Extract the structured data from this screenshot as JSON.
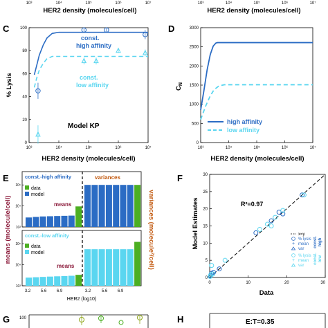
{
  "panel_letters": {
    "C": "C",
    "D": "D",
    "E": "E",
    "F": "F",
    "G": "G",
    "H": "H"
  },
  "top_strip": {
    "left_ticks": [
      "10³",
      "10⁴",
      "10⁵",
      "10⁶",
      "10⁷"
    ],
    "right_ticks": [
      "10³",
      "10⁴",
      "10⁵",
      "10⁶",
      "10⁷"
    ],
    "xlabel": "HER2 density (molecules/cell)"
  },
  "colors": {
    "dark_blue": "#2b6cc4",
    "light_cyan": "#5ad6f0",
    "green": "#4caf22",
    "olive": "#8fa61a",
    "means_red": "#8b1a3a",
    "variances_orange": "#c2590f"
  },
  "chart_data": [
    {
      "panel": "C",
      "type": "line",
      "xscale": "log",
      "xlim": [
        1000,
        10000000
      ],
      "ylim": [
        0,
        100
      ],
      "xlabel": "HER2 density (molecules/cell)",
      "ylabel": "% Lysis",
      "xticks": [
        "10³",
        "10⁴",
        "10⁵",
        "10⁶",
        "10⁷"
      ],
      "yticks": [
        "0",
        "20",
        "40",
        "60",
        "80",
        "100"
      ],
      "annotation_high": [
        "const.",
        "high affinity"
      ],
      "annotation_low": [
        "const.",
        "low affinity"
      ],
      "model_label": "Model KP",
      "series": [
        {
          "name": "const. high affinity",
          "style": "solid",
          "x": [
            1500,
            1800,
            2200,
            3000,
            4000,
            6000,
            10000,
            30000,
            100000,
            1000000,
            10000000
          ],
          "y": [
            59,
            67,
            76,
            85,
            91,
            95,
            96,
            96,
            96,
            96,
            96
          ]
        },
        {
          "name": "const. low affinity",
          "style": "dashed",
          "x": [
            1500,
            1800,
            2200,
            3000,
            4000,
            6000,
            10000,
            30000,
            100000,
            1000000,
            10000000
          ],
          "y": [
            48,
            56,
            63,
            69,
            73,
            75,
            75,
            75,
            75,
            75,
            75
          ]
        }
      ],
      "data_points_high": [
        {
          "x": 2000,
          "y": 45,
          "err": 7
        },
        {
          "x": 70000,
          "y": 98,
          "err": 2
        },
        {
          "x": 400000,
          "y": 98,
          "err": 2
        },
        {
          "x": 8000000,
          "y": 94,
          "err": 4
        }
      ],
      "data_points_low": [
        {
          "x": 2000,
          "y": 7,
          "err": 8
        },
        {
          "x": 70000,
          "y": 71,
          "err": 3
        },
        {
          "x": 180000,
          "y": 71,
          "err": 3
        },
        {
          "x": 1000000,
          "y": 80,
          "err": 2
        },
        {
          "x": 8000000,
          "y": 78,
          "err": 3
        }
      ]
    },
    {
      "panel": "D",
      "type": "line",
      "xscale": "log",
      "xlim": [
        1000,
        10000000
      ],
      "ylim": [
        0,
        3000
      ],
      "xlabel": "HER2 density (molecules/cell)",
      "ylabel": "C_N",
      "xticks": [
        "10³",
        "10⁴",
        "10⁵",
        "10⁶",
        "10⁷"
      ],
      "yticks": [
        "0",
        "500",
        "1000",
        "1500",
        "2000",
        "2500",
        "3000"
      ],
      "series": [
        {
          "name": "high affinity",
          "style": "solid",
          "x": [
            1000,
            1300,
            1700,
            2200,
            2800,
            3500,
            4000,
            10000000
          ],
          "y": [
            850,
            1350,
            1900,
            2300,
            2520,
            2600,
            2610,
            2610
          ]
        },
        {
          "name": "low affinity",
          "style": "dashed",
          "x": [
            1000,
            1500,
            2200,
            3000,
            4500,
            7000,
            10000000
          ],
          "y": [
            600,
            950,
            1220,
            1380,
            1480,
            1510,
            1510
          ]
        }
      ]
    },
    {
      "panel": "E",
      "type": "bar",
      "yscale": "log",
      "xlabel": "HER2 (log10)",
      "ylabel_left": "means (molecule/cell)",
      "ylabel_right": "variances (molecule²/cell)",
      "xticks": [
        "3.2",
        "5.6",
        "6.9",
        "3.2",
        "5.6",
        "6.9"
      ],
      "subpanels": [
        {
          "title": "const.-high affinity",
          "legend": [
            "data",
            "model"
          ],
          "yticks": [
            "10²",
            "10⁴",
            "10⁶"
          ],
          "ylim": [
            100,
            10000000
          ],
          "means_label": "means",
          "variances_label": "variances",
          "means": {
            "model": [
              800,
              900,
              1000,
              1050,
              1100,
              1150,
              1200
            ],
            "data": 9000
          },
          "variances": {
            "model": [
              1000000,
              1000000,
              1000000,
              1000000,
              1000000,
              1000000,
              1000000
            ],
            "data": 1000000
          }
        },
        {
          "title": "const.-low affinity",
          "legend": [
            "data",
            "model"
          ],
          "yticks": [
            "10²",
            "10⁴",
            "10⁶"
          ],
          "ylim": [
            100,
            10000000
          ],
          "means_label": "means",
          "means": {
            "model": [
              600,
              650,
              700,
              750,
              800,
              850,
              900
            ],
            "data": 1100
          },
          "variances": {
            "model": [
              300000,
              300000,
              300000,
              300000,
              300000,
              300000,
              300000
            ],
            "data": 1500000
          }
        }
      ]
    },
    {
      "panel": "F",
      "type": "scatter",
      "xlim": [
        0,
        30
      ],
      "ylim": [
        0,
        30
      ],
      "xlabel": "Data",
      "ylabel": "Model Estimates",
      "xticks": [
        "0",
        "10",
        "20",
        "30"
      ],
      "yticks": [
        "0",
        "5",
        "10",
        "15",
        "20",
        "25",
        "30"
      ],
      "r_squared": "R²=0.97",
      "legend": {
        "line": "x=y",
        "high": [
          "% lysis",
          "mean",
          "var"
        ],
        "high_label": [
          "const.",
          "high"
        ],
        "low": [
          "% lysis",
          "mean",
          "var"
        ],
        "low_label": [
          "const.",
          "low"
        ]
      },
      "points_high": [
        [
          0.2,
          0.5
        ],
        [
          0.5,
          1.2
        ],
        [
          1.0,
          1.5
        ],
        [
          2.5,
          2.5
        ],
        [
          12,
          13
        ],
        [
          16,
          16.5
        ],
        [
          18,
          19
        ],
        [
          19,
          18.5
        ],
        [
          24,
          24
        ]
      ],
      "points_low": [
        [
          0.1,
          0.3
        ],
        [
          0.3,
          0.8
        ],
        [
          0.8,
          1.0
        ],
        [
          0.5,
          3.5
        ],
        [
          4,
          5
        ],
        [
          13,
          14
        ],
        [
          15,
          15.5
        ],
        [
          16,
          15
        ],
        [
          17,
          17.5
        ],
        [
          19,
          19.5
        ],
        [
          24.5,
          24
        ]
      ]
    },
    {
      "panel": "G",
      "type": "scatter",
      "ytick_top": "100",
      "xlim": [
        0,
        1
      ],
      "ylim": [
        80,
        100
      ]
    },
    {
      "panel": "H",
      "type": "line",
      "ratio_label": "E:T=0.35"
    }
  ]
}
